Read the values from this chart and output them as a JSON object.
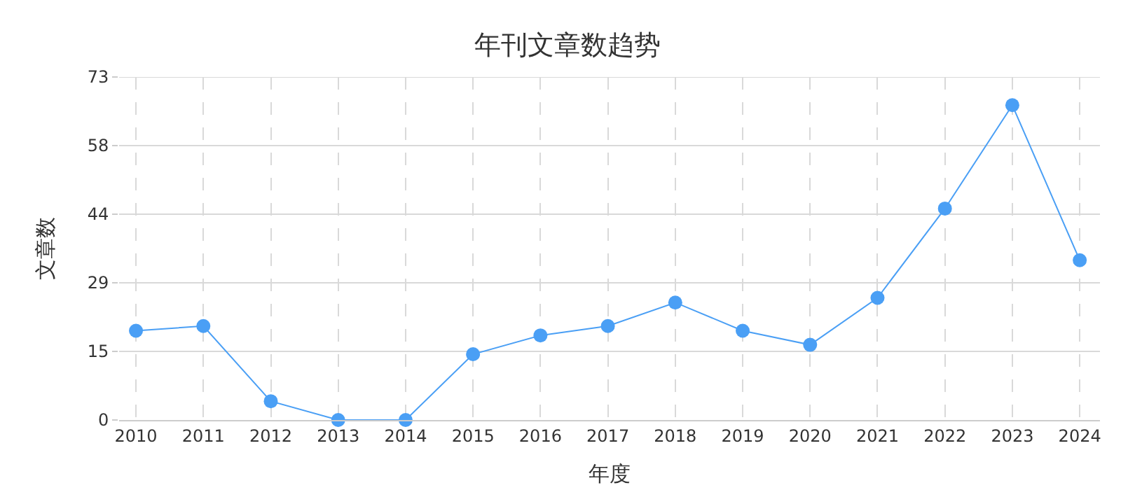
{
  "chart_data": {
    "type": "line",
    "title": "年刊文章数趋势",
    "xlabel": "年度",
    "ylabel": "文章数",
    "categories": [
      "2010",
      "2011",
      "2012",
      "2013",
      "2014",
      "2015",
      "2016",
      "2017",
      "2018",
      "2019",
      "2020",
      "2021",
      "2022",
      "2023",
      "2024"
    ],
    "series": [
      {
        "color": "#4a9ff5",
        "values": [
          19,
          20,
          4,
          0,
          0,
          14,
          18,
          20,
          25,
          19,
          16,
          26,
          45,
          67,
          34
        ]
      }
    ],
    "ylim": [
      0,
      73
    ],
    "yticks": [
      0,
      {
        "value": 14.6,
        "label": "15"
      },
      {
        "value": 29.2,
        "label": "29"
      },
      {
        "value": 43.8,
        "label": "44"
      },
      {
        "value": 58.4,
        "label": "58"
      },
      73
    ],
    "grid": true,
    "legend": false,
    "marker": "circle",
    "line_style": "solid"
  }
}
